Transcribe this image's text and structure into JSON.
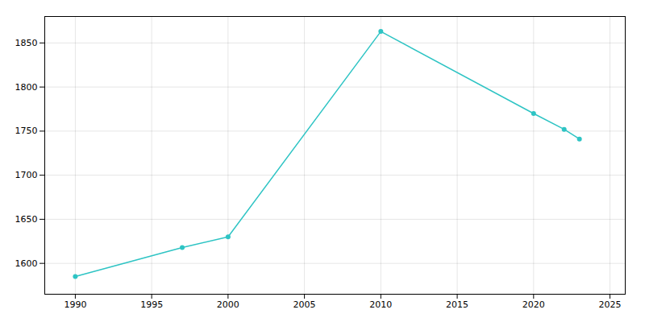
{
  "chart_data": {
    "type": "line",
    "x": [
      1990,
      1997,
      2000,
      2010,
      2020,
      2022,
      2023
    ],
    "values": [
      1585,
      1618,
      1630,
      1863,
      1770,
      1752,
      1741
    ],
    "color": "#2EC4C4",
    "marker": "circle",
    "xlim": [
      1988,
      2026
    ],
    "xticks": [
      1990,
      1995,
      2000,
      2005,
      2010,
      2015,
      2020,
      2025
    ],
    "ylim": [
      1565,
      1880
    ],
    "yticks": [
      1600,
      1650,
      1700,
      1750,
      1800,
      1850
    ],
    "grid": true
  }
}
